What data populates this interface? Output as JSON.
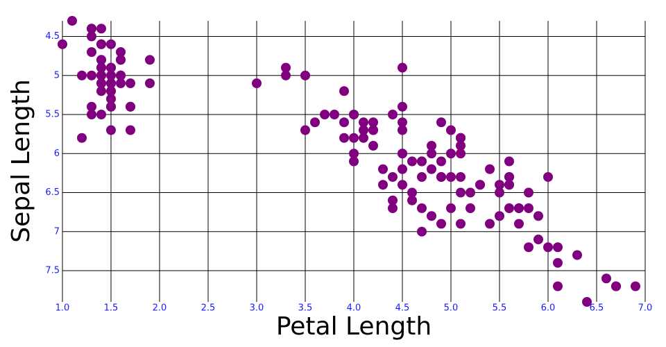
{
  "chart_data": {
    "type": "scatter",
    "x_label": "Petal Length",
    "y_label": "Sepal Length",
    "x": [
      1.4,
      1.4,
      1.3,
      1.5,
      1.4,
      1.7,
      1.4,
      1.5,
      1.4,
      1.5,
      1.5,
      1.6,
      1.4,
      1.1,
      1.2,
      1.5,
      1.3,
      1.4,
      1.7,
      1.5,
      1.7,
      1.5,
      1.0,
      1.7,
      1.9,
      1.6,
      1.6,
      1.5,
      1.4,
      1.6,
      1.6,
      1.5,
      1.5,
      1.4,
      1.5,
      1.2,
      1.3,
      1.4,
      1.3,
      1.5,
      1.3,
      1.3,
      1.3,
      1.6,
      1.9,
      1.4,
      1.6,
      1.4,
      1.5,
      1.4,
      4.7,
      4.5,
      4.9,
      4.0,
      4.6,
      4.5,
      4.7,
      3.3,
      4.6,
      3.9,
      3.5,
      4.2,
      4.0,
      4.7,
      3.6,
      4.4,
      4.5,
      4.1,
      4.5,
      3.9,
      4.8,
      4.0,
      4.9,
      4.7,
      4.3,
      4.4,
      4.8,
      5.0,
      4.5,
      3.5,
      3.8,
      3.7,
      3.9,
      5.1,
      4.5,
      4.5,
      4.7,
      4.4,
      4.1,
      4.0,
      4.4,
      4.6,
      4.0,
      3.3,
      4.2,
      4.2,
      4.2,
      4.3,
      3.0,
      4.1,
      6.0,
      5.1,
      5.9,
      5.6,
      5.8,
      6.6,
      4.5,
      6.3,
      5.8,
      6.1,
      5.1,
      5.3,
      5.5,
      5.0,
      5.1,
      5.3,
      5.5,
      6.7,
      6.9,
      5.0,
      5.7,
      4.9,
      6.7,
      4.9,
      5.7,
      6.0,
      4.8,
      4.9,
      5.6,
      5.8,
      6.1,
      6.4,
      5.6,
      5.1,
      5.6,
      6.1,
      5.6,
      5.5,
      4.8,
      5.4,
      5.6,
      5.1,
      5.1,
      5.9,
      5.7,
      5.2,
      5.0,
      5.2,
      5.4,
      5.1
    ],
    "values": [
      5.1,
      4.9,
      4.7,
      4.6,
      5.0,
      5.4,
      4.6,
      5.0,
      4.4,
      4.9,
      5.4,
      4.8,
      4.8,
      4.3,
      5.8,
      5.7,
      5.4,
      5.1,
      5.7,
      5.1,
      5.4,
      5.1,
      4.6,
      5.1,
      4.8,
      5.0,
      5.0,
      5.2,
      5.2,
      4.7,
      4.8,
      5.4,
      5.2,
      5.5,
      4.9,
      5.0,
      5.5,
      4.9,
      4.4,
      5.1,
      5.0,
      4.5,
      4.4,
      5.0,
      5.1,
      4.8,
      5.1,
      4.6,
      5.3,
      5.0,
      7.0,
      6.4,
      6.9,
      5.5,
      6.5,
      5.7,
      6.3,
      4.9,
      6.6,
      5.2,
      5.0,
      5.9,
      6.0,
      6.1,
      5.6,
      6.7,
      5.6,
      5.8,
      6.2,
      5.6,
      5.9,
      6.1,
      6.3,
      6.1,
      6.4,
      6.6,
      6.8,
      6.7,
      6.0,
      5.7,
      5.5,
      5.5,
      5.8,
      6.0,
      5.4,
      6.0,
      6.7,
      6.3,
      5.6,
      5.5,
      5.5,
      6.1,
      5.8,
      5.0,
      5.6,
      5.7,
      5.7,
      6.2,
      5.1,
      5.7,
      6.3,
      5.8,
      7.1,
      6.3,
      6.5,
      7.6,
      4.9,
      7.3,
      6.7,
      7.2,
      6.5,
      6.4,
      6.8,
      5.7,
      5.8,
      6.4,
      6.5,
      7.7,
      7.7,
      6.0,
      6.9,
      5.6,
      7.7,
      6.3,
      6.7,
      7.2,
      6.2,
      6.1,
      6.4,
      7.2,
      7.4,
      7.9,
      6.4,
      6.3,
      6.1,
      7.7,
      6.3,
      6.4,
      6.0,
      6.9,
      6.7,
      6.9,
      5.8,
      6.8,
      6.7,
      6.7,
      6.3,
      6.5,
      6.2,
      5.9
    ],
    "color": "#800080",
    "xlim": [
      1.0,
      7.0
    ],
    "xticks": [
      {
        "value": 1,
        "label": "1.0"
      },
      1.5,
      {
        "value": 2,
        "label": "2.0"
      },
      2.5,
      {
        "value": 3,
        "label": "3.0"
      },
      3.5,
      {
        "value": 4,
        "label": "4.0"
      },
      4.5,
      {
        "value": 5,
        "label": "5.0"
      },
      5.5,
      {
        "value": 6,
        "label": "6.0"
      },
      6.5,
      {
        "value": 7,
        "label": "7.0"
      }
    ],
    "ylim": [
      4.3,
      7.9
    ],
    "yticks": [
      4.5,
      5,
      5.5,
      6,
      6.5,
      7,
      7.5
    ],
    "y_reversed": true,
    "grid": true
  }
}
